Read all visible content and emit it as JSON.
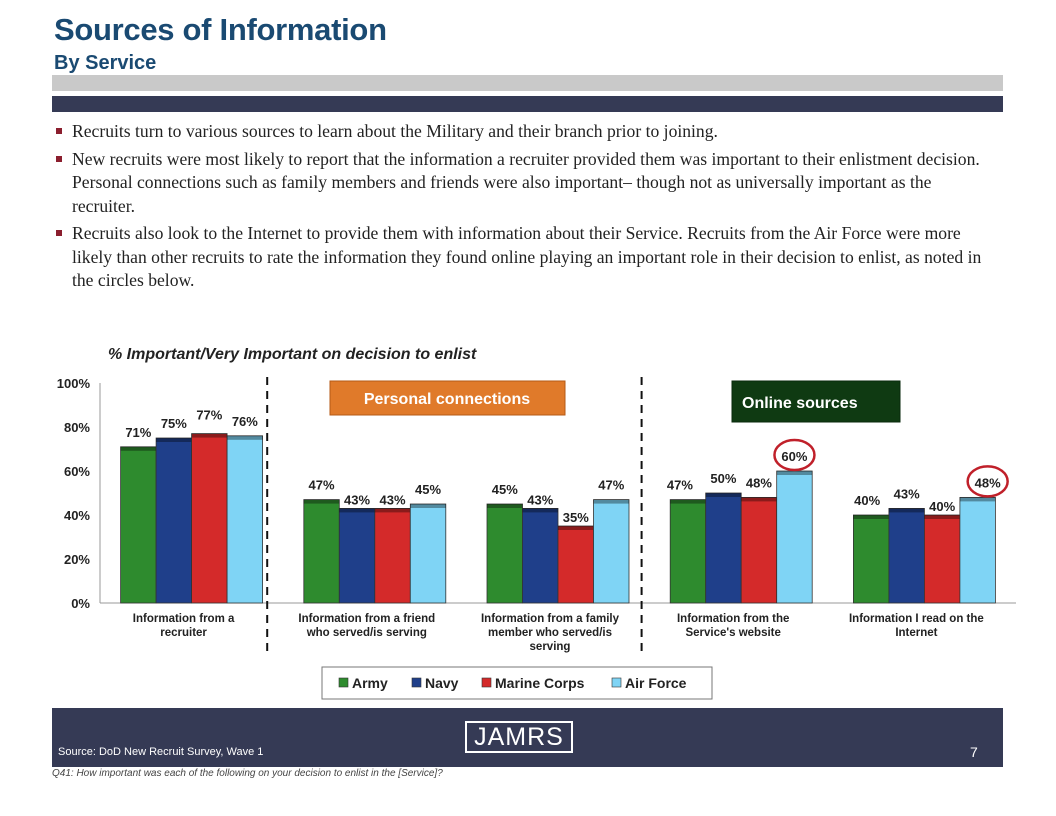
{
  "header": {
    "title": "Sources of Information",
    "subtitle": "By Service"
  },
  "bullets": [
    "Recruits turn to various sources to learn about the Military and their branch prior to joining.",
    "New recruits were most likely to report that the information a recruiter provided them was important to their enlistment decision.  Personal connections such as family members and friends were also important– though not as universally important as the recruiter.",
    "Recruits also look to the Internet to provide them with information about their Service.  Recruits from the Air Force were more likely than other recruits to rate the information they found online playing an important role in their decision to enlist, as noted in the circles below."
  ],
  "chart_data": {
    "type": "bar",
    "title": "% Important/Very Important on decision to enlist",
    "xlabel": "",
    "ylabel": "",
    "ylim": [
      0,
      100
    ],
    "yticks": [
      "0%",
      "20%",
      "40%",
      "60%",
      "80%",
      "100%"
    ],
    "grid": false,
    "legend_position": "bottom",
    "categories": [
      [
        "Information from a",
        "recruiter"
      ],
      [
        "Information from a friend",
        "who served/is serving"
      ],
      [
        "Information from a family",
        "member who served/is",
        "serving"
      ],
      [
        "Information from the",
        "Service's website"
      ],
      [
        "Information I read on the",
        "Internet"
      ]
    ],
    "series": [
      {
        "name": "Army",
        "color": "#2e8b2e",
        "values": [
          71,
          47,
          45,
          47,
          40
        ]
      },
      {
        "name": "Navy",
        "color": "#1f3f8a",
        "values": [
          75,
          43,
          43,
          50,
          43
        ]
      },
      {
        "name": "Marine Corps",
        "color": "#d42a2a",
        "values": [
          77,
          43,
          35,
          48,
          40
        ]
      },
      {
        "name": "Air Force",
        "color": "#7fd4f5",
        "values": [
          76,
          45,
          47,
          60,
          48
        ]
      }
    ],
    "value_suffix": "%",
    "annotations": [
      {
        "label": "Personal connections",
        "bg": "#e07a2a",
        "border": "#b55a16"
      },
      {
        "label": "Online sources",
        "bg": "#0f3a12",
        "border": "#0a2a0c"
      }
    ],
    "highlight_color": "#c0202a"
  },
  "footer": {
    "source": "Source:  DoD New Recruit Survey, Wave 1",
    "logo": "JAMRS",
    "page": "7",
    "question": "Q41:  How important was each of the following on your decision to enlist in the [Service]?"
  }
}
